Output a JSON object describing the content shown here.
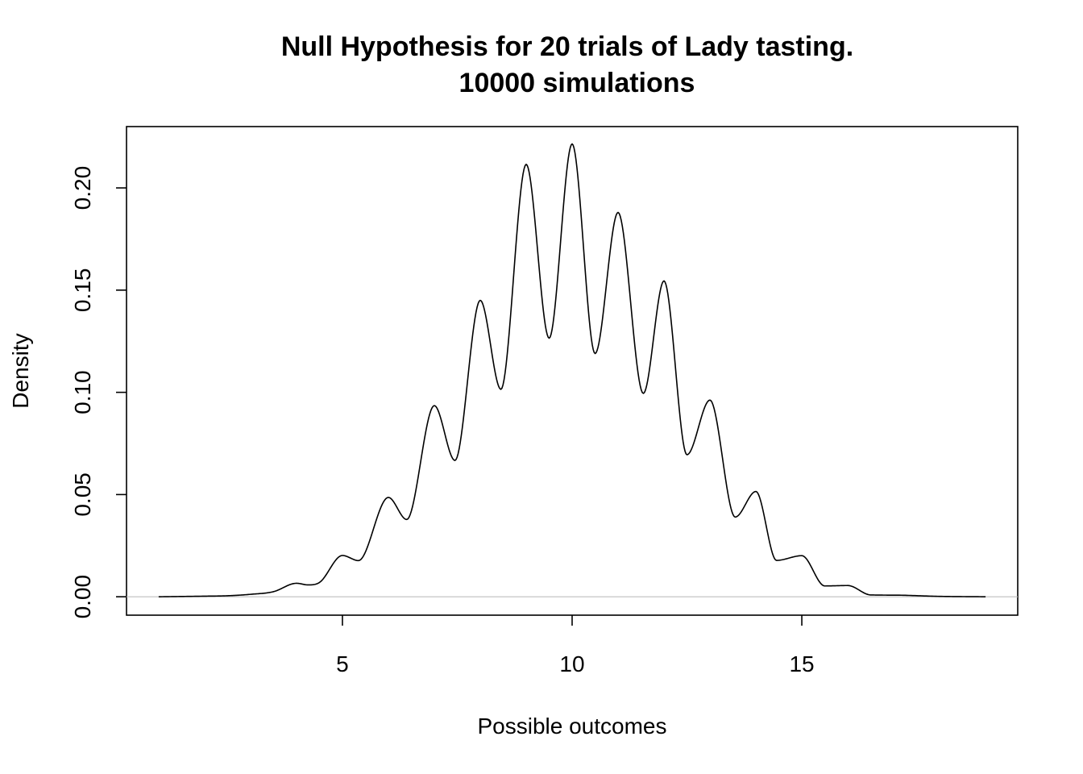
{
  "chart_data": {
    "type": "line",
    "title_line1": "Null Hypothesis for 20 trials of Lady tasting.",
    "title_line2": "10000 simulations",
    "xlabel": "Possible outcomes",
    "ylabel": "Density",
    "xlim": [
      0.3,
      19.7
    ],
    "ylim": [
      -0.009,
      0.23
    ],
    "x_ticks": [
      5,
      10,
      15
    ],
    "x_tick_labels": [
      "5",
      "10",
      "15"
    ],
    "y_ticks": [
      0.0,
      0.05,
      0.1,
      0.15,
      0.2
    ],
    "y_tick_labels": [
      "0.00",
      "0.05",
      "0.10",
      "0.15",
      "0.20"
    ],
    "zero_line": true,
    "grid": false,
    "series": [
      {
        "x": [
          1.0,
          2.0,
          2.5,
          3.0,
          3.5,
          4.0,
          4.25,
          4.5,
          5.0,
          5.35,
          6.0,
          6.4,
          7.0,
          7.45,
          8.0,
          8.45,
          9.0,
          9.5,
          10.0,
          10.5,
          11.0,
          11.55,
          12.0,
          12.5,
          13.0,
          13.55,
          14.0,
          14.45,
          15.0,
          15.5,
          16.0,
          16.5,
          17.0,
          18.0,
          19.0
        ],
        "y": [
          0.0,
          0.0003,
          0.0005,
          0.0012,
          0.0025,
          0.0066,
          0.0058,
          0.007,
          0.0202,
          0.0177,
          0.0486,
          0.0378,
          0.0935,
          0.0667,
          0.145,
          0.1015,
          0.2115,
          0.1265,
          0.2215,
          0.119,
          0.188,
          0.0995,
          0.1545,
          0.0695,
          0.0962,
          0.039,
          0.0515,
          0.0178,
          0.0201,
          0.0053,
          0.0055,
          0.0009,
          0.0008,
          0.0002,
          0.0
        ]
      }
    ]
  }
}
